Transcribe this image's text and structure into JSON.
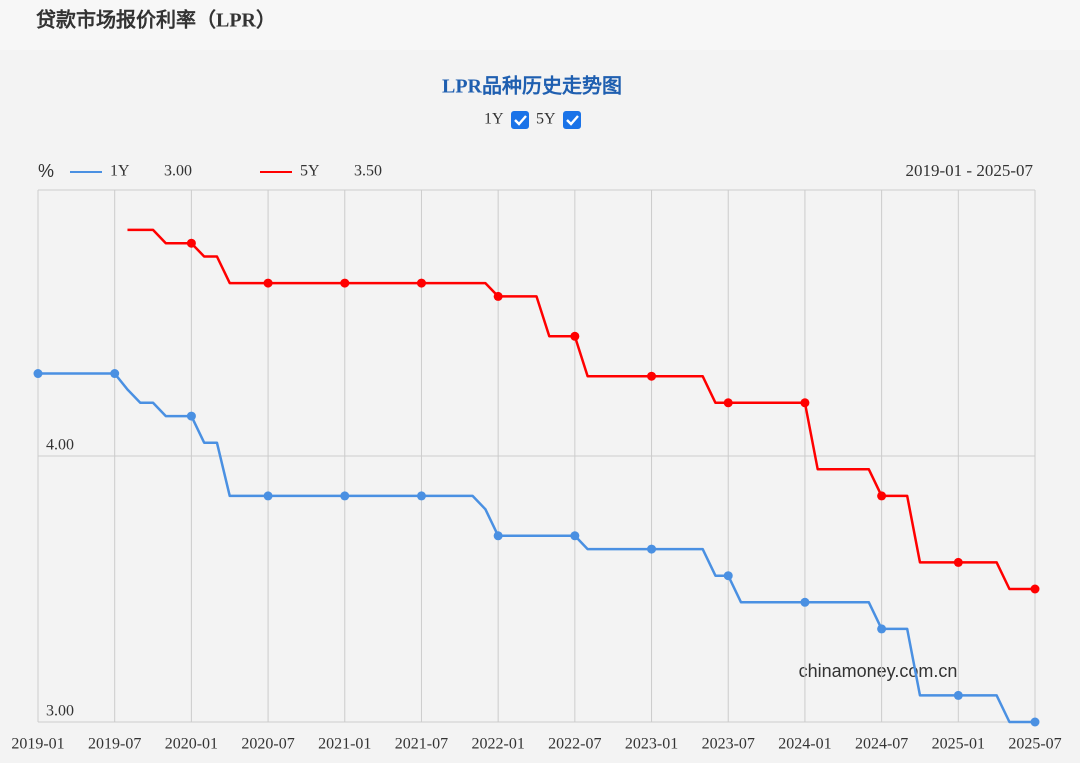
{
  "header": {
    "title": "贷款市场报价利率（LPR）"
  },
  "chart_data": {
    "type": "line",
    "title": "LPR品种历史走势图",
    "y_unit": "%",
    "range": "2019-01 - 2025-07",
    "watermark": "chinamoney.com.cn",
    "categories": [
      "2019-01",
      null,
      null,
      null,
      null,
      null,
      "2019-07",
      null,
      null,
      null,
      null,
      null,
      "2020-01",
      null,
      null,
      null,
      null,
      null,
      "2020-07",
      null,
      null,
      null,
      null,
      null,
      "2021-01",
      null,
      null,
      null,
      null,
      null,
      "2021-07",
      null,
      null,
      null,
      null,
      null,
      "2022-01",
      null,
      null,
      null,
      null,
      null,
      "2022-07",
      null,
      null,
      null,
      null,
      null,
      "2023-01",
      null,
      null,
      null,
      null,
      null,
      "2023-07",
      null,
      null,
      null,
      null,
      null,
      "2024-01",
      null,
      null,
      null,
      null,
      null,
      "2024-07",
      null,
      null,
      null,
      null,
      null,
      "2025-01",
      null,
      null,
      null,
      null,
      null,
      "2025-07"
    ],
    "series": [
      {
        "name": "1Y",
        "color": "#4a90e2",
        "current": "3.00",
        "values": [
          4.31,
          4.31,
          4.31,
          4.31,
          4.31,
          4.31,
          4.31,
          4.25,
          4.2,
          4.2,
          4.15,
          4.15,
          4.15,
          4.05,
          4.05,
          3.85,
          3.85,
          3.85,
          3.85,
          3.85,
          3.85,
          3.85,
          3.85,
          3.85,
          3.85,
          3.85,
          3.85,
          3.85,
          3.85,
          3.85,
          3.85,
          3.85,
          3.85,
          3.85,
          3.85,
          3.8,
          3.7,
          3.7,
          3.7,
          3.7,
          3.7,
          3.7,
          3.7,
          3.65,
          3.65,
          3.65,
          3.65,
          3.65,
          3.65,
          3.65,
          3.65,
          3.65,
          3.65,
          3.55,
          3.55,
          3.45,
          3.45,
          3.45,
          3.45,
          3.45,
          3.45,
          3.45,
          3.45,
          3.45,
          3.45,
          3.45,
          3.35,
          3.35,
          3.35,
          3.1,
          3.1,
          3.1,
          3.1,
          3.1,
          3.1,
          3.1,
          3.0,
          3.0,
          3.0
        ]
      },
      {
        "name": "5Y",
        "color": "#ff0000",
        "current": "3.50",
        "values": [
          null,
          null,
          null,
          null,
          null,
          null,
          null,
          4.85,
          4.85,
          4.85,
          4.8,
          4.8,
          4.8,
          4.75,
          4.75,
          4.65,
          4.65,
          4.65,
          4.65,
          4.65,
          4.65,
          4.65,
          4.65,
          4.65,
          4.65,
          4.65,
          4.65,
          4.65,
          4.65,
          4.65,
          4.65,
          4.65,
          4.65,
          4.65,
          4.65,
          4.65,
          4.6,
          4.6,
          4.6,
          4.6,
          4.45,
          4.45,
          4.45,
          4.3,
          4.3,
          4.3,
          4.3,
          4.3,
          4.3,
          4.3,
          4.3,
          4.3,
          4.3,
          4.2,
          4.2,
          4.2,
          4.2,
          4.2,
          4.2,
          4.2,
          4.2,
          3.95,
          3.95,
          3.95,
          3.95,
          3.95,
          3.85,
          3.85,
          3.85,
          3.6,
          3.6,
          3.6,
          3.6,
          3.6,
          3.6,
          3.6,
          3.5,
          3.5,
          3.5
        ]
      }
    ],
    "ylim": [
      3,
      5
    ],
    "yticks": [
      {
        "value": 3,
        "label": "3.00"
      },
      {
        "value": 4,
        "label": "4.00"
      }
    ],
    "grid": true
  }
}
